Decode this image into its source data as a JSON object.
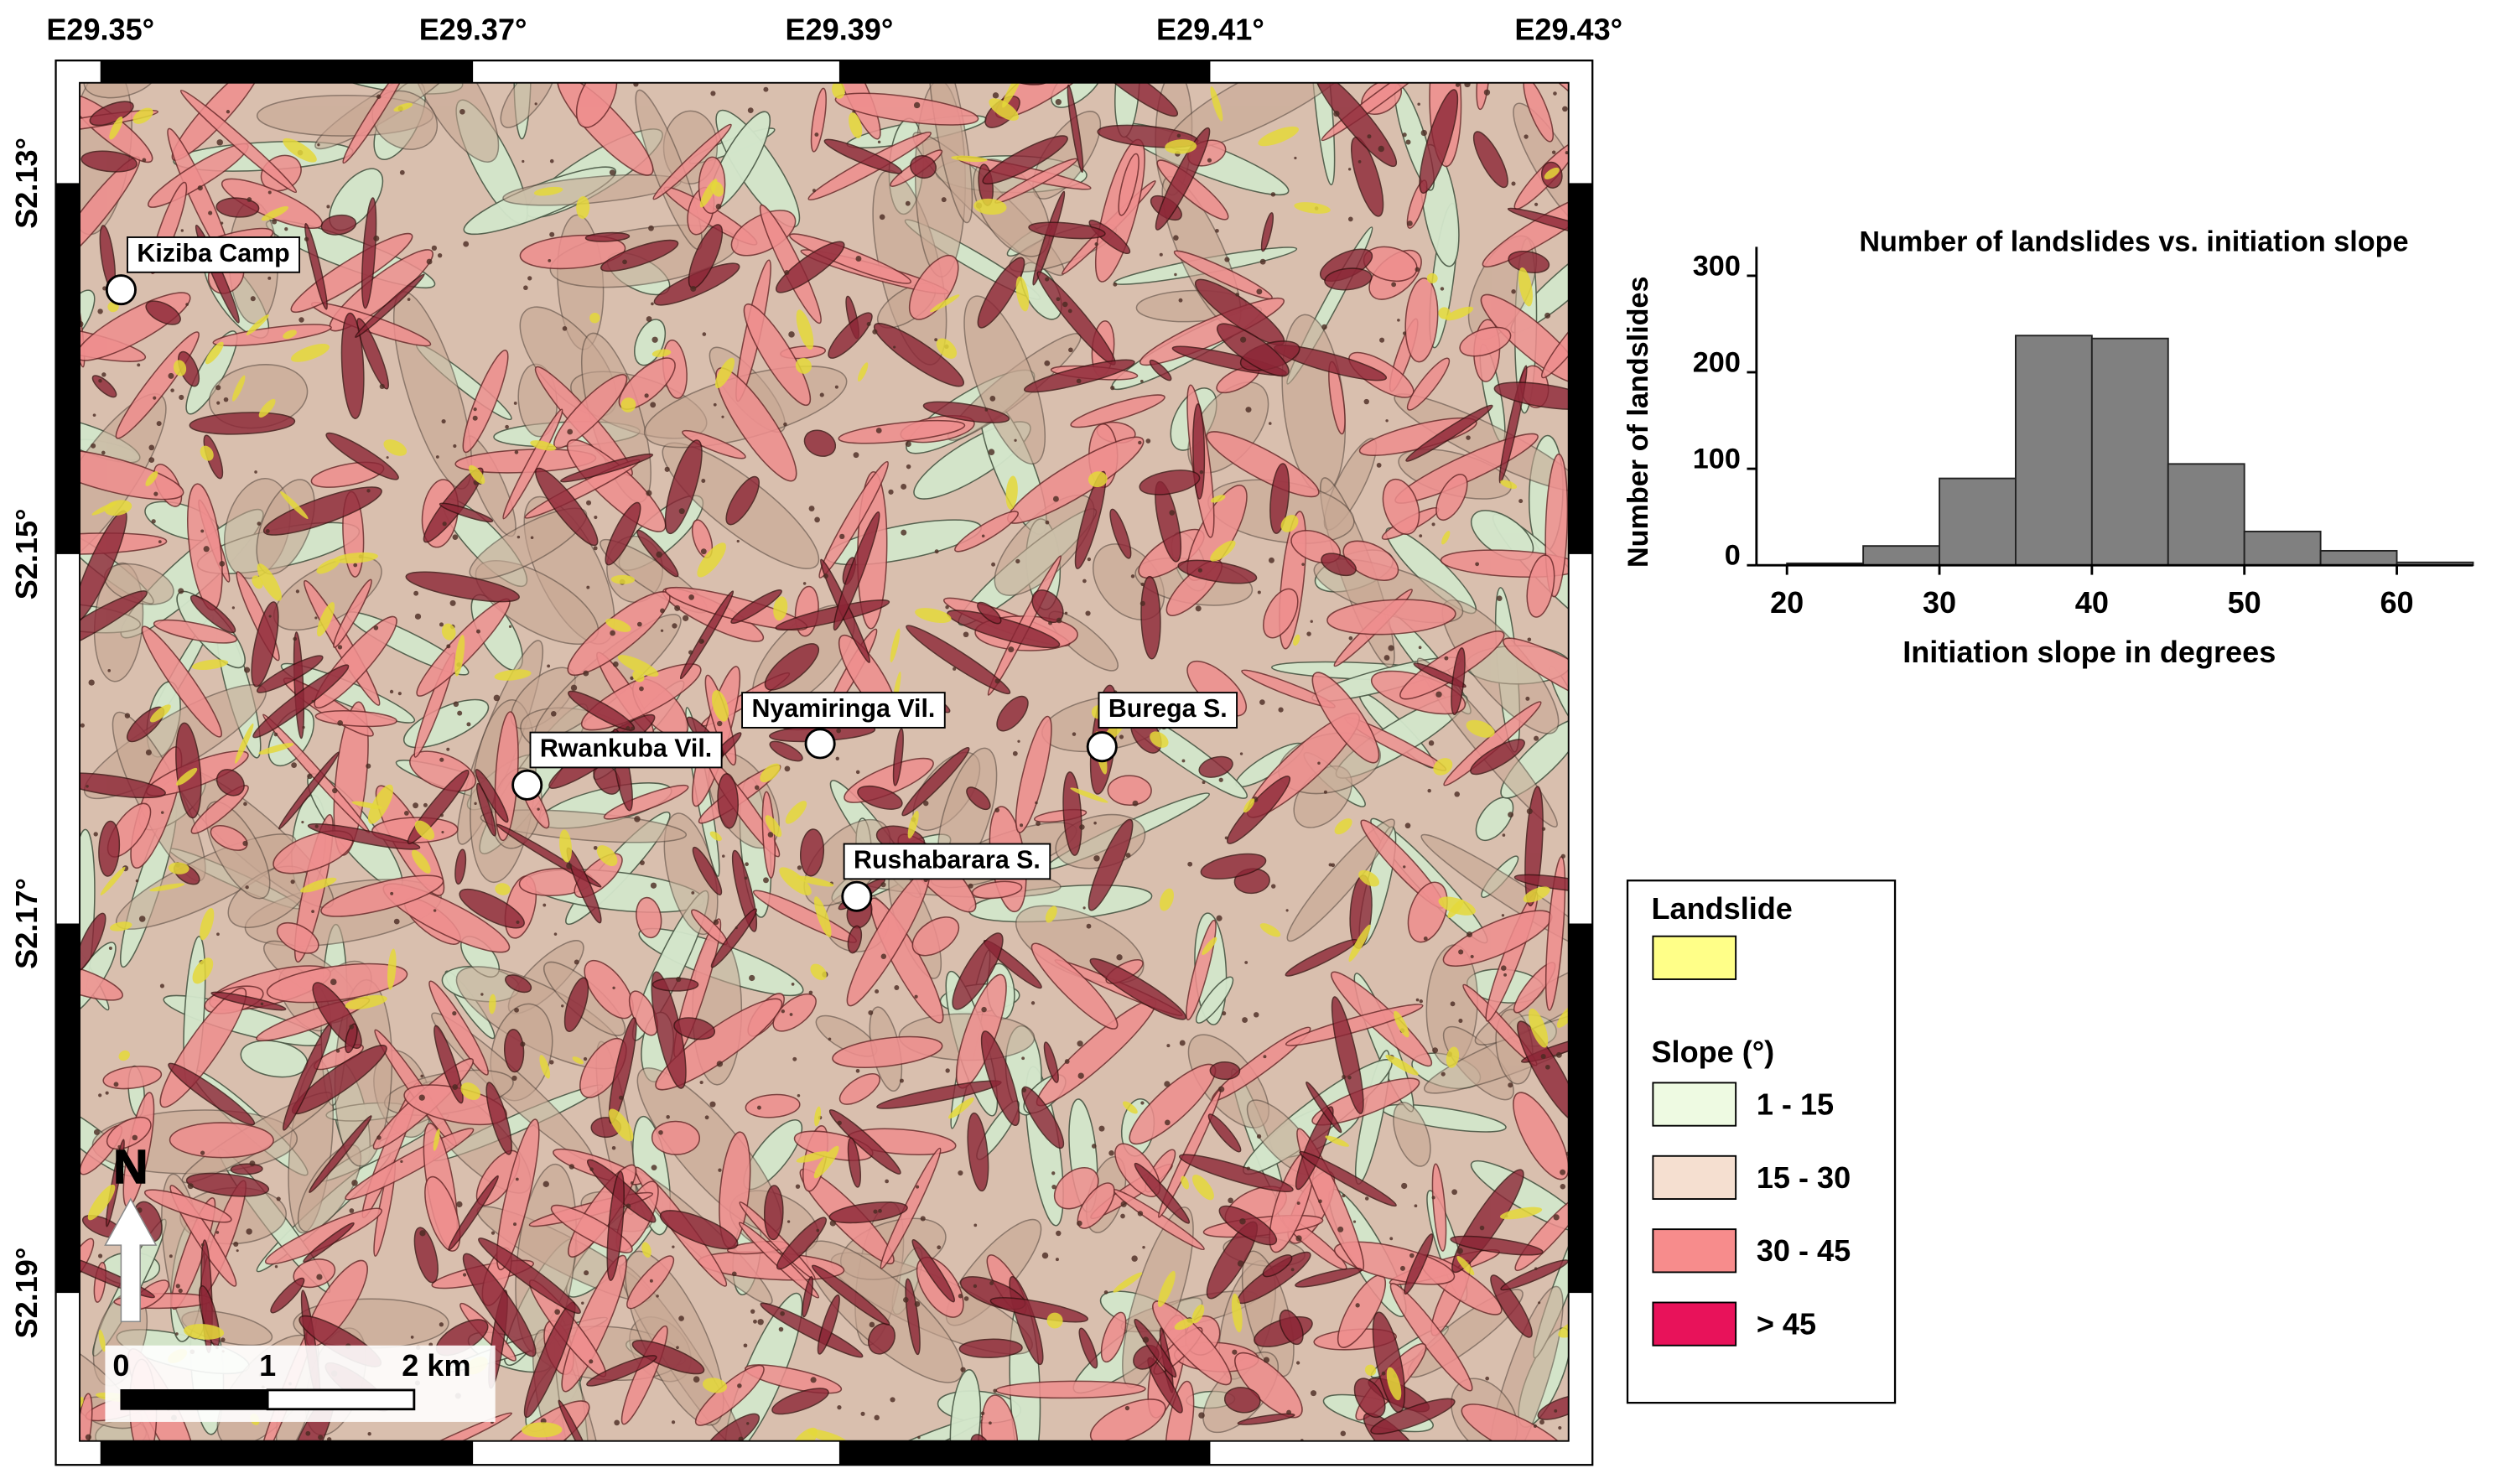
{
  "map": {
    "lon_labels": [
      "E29.35°",
      "E29.37°",
      "E29.39°",
      "E29.41°",
      "E29.43°"
    ],
    "lat_labels": [
      "S2.13°",
      "S2.15°",
      "S2.17°",
      "S2.19°"
    ],
    "places": [
      {
        "name": "Kiziba Camp"
      },
      {
        "name": "Rwankuba Vil."
      },
      {
        "name": "Nyamiringa Vil."
      },
      {
        "name": "Burega S."
      },
      {
        "name": "Rushabarara S."
      }
    ],
    "scale_bar": {
      "labels": [
        "0",
        "1",
        "2 km"
      ]
    },
    "north": "N",
    "legend": {
      "landslide_title": "Landslide",
      "landslide_color": "#ffff88",
      "slope_title": "Slope (°)",
      "slope_classes": [
        {
          "label": "1 - 15",
          "color": "#eefae2"
        },
        {
          "label": "15 - 30",
          "color": "#f5dfd0"
        },
        {
          "label": "30 - 45",
          "color": "#f78c8c"
        },
        {
          "label": "> 45",
          "color": "#e8125a"
        }
      ]
    }
  },
  "chart_data": {
    "type": "histogram",
    "title": "Number of landslides vs. initiation slope",
    "x_label": "Initiation slope in degrees",
    "y_label": "Number of landslides",
    "bins": [
      20,
      25,
      30,
      35,
      40,
      45,
      50,
      55,
      60,
      65
    ],
    "values": [
      2,
      20,
      90,
      238,
      235,
      105,
      35,
      15,
      3
    ],
    "color": "#808080",
    "xlim": [
      18,
      65
    ],
    "ylim": [
      0,
      330
    ],
    "xticks": [
      20,
      30,
      40,
      50,
      60
    ],
    "yticks": [
      0,
      100,
      200,
      300
    ]
  }
}
